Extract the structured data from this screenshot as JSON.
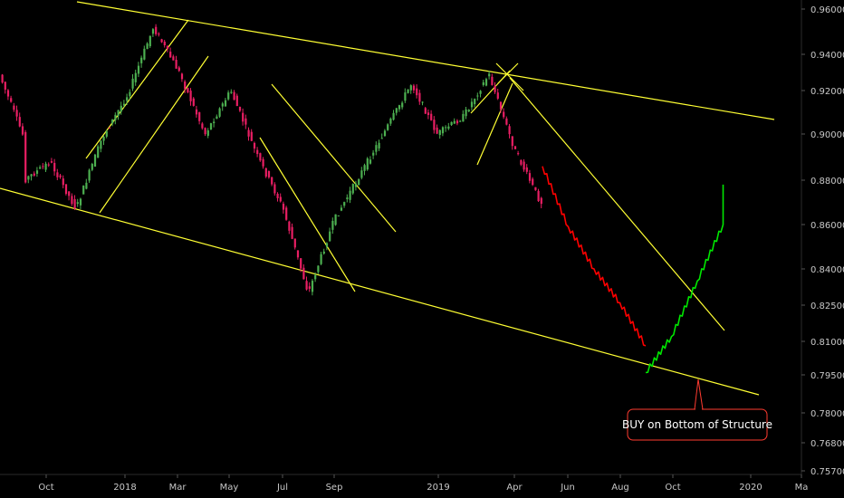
{
  "chart_data": {
    "type": "candlestick",
    "title": "",
    "xlabel": "",
    "ylabel": "",
    "x_tick_labels": [
      "Oct",
      "2018",
      "Mar",
      "May",
      "Jul",
      "Sep",
      "2019",
      "Apr",
      "Jun",
      "Aug",
      "Oct",
      "2020",
      "Ma"
    ],
    "y_tick_labels": [
      "0.96000",
      "0.94000",
      "0.92000",
      "0.90000",
      "0.88000",
      "0.86000",
      "0.84000",
      "0.82500",
      "0.81000",
      "0.79500",
      "0.78000",
      "0.76800",
      "0.75700"
    ],
    "grid": false,
    "colors": {
      "background": "#000000",
      "up": "#4caf50",
      "down": "#e91e63",
      "projection_down": "#ff0000",
      "projection_up": "#00e600",
      "trendline": "#ffff33",
      "callout_border": "#ff3b30",
      "axis_text": "#c8c8c8"
    },
    "series": [
      {
        "values": [
          {
            "x": "Sep 2017",
            "y": 0.93
          },
          {
            "x": "Oct 2017",
            "y": 0.898
          },
          {
            "x": "Oct 2017",
            "y": 0.88
          },
          {
            "x": "Nov 2017",
            "y": 0.888
          },
          {
            "x": "Dec 2017",
            "y": 0.867
          },
          {
            "x": "Jan 2018",
            "y": 0.898
          },
          {
            "x": "Feb 2018",
            "y": 0.918
          },
          {
            "x": "Mar 2018",
            "y": 0.952
          },
          {
            "x": "Apr 2018",
            "y": 0.93
          },
          {
            "x": "May 2018",
            "y": 0.9
          },
          {
            "x": "Jun 2018",
            "y": 0.92
          },
          {
            "x": "Jul 2018",
            "y": 0.891
          },
          {
            "x": "Aug 2018",
            "y": 0.868
          },
          {
            "x": "Sep 2018",
            "y": 0.83
          },
          {
            "x": "Oct 2018",
            "y": 0.862
          },
          {
            "x": "Dec 2018",
            "y": 0.902
          },
          {
            "x": "Jan 2019",
            "y": 0.924
          },
          {
            "x": "Feb 2019",
            "y": 0.9
          },
          {
            "x": "Mar 2019",
            "y": 0.908
          },
          {
            "x": "Apr 2019",
            "y": 0.929
          },
          {
            "x": "May 2019",
            "y": 0.893
          },
          {
            "x": "Jun 2019",
            "y": 0.87
          }
        ]
      },
      {
        "values": [
          {
            "x": "Jun 2019",
            "y": 0.886
          },
          {
            "x": "Jul 2019",
            "y": 0.859
          },
          {
            "x": "Aug 2019",
            "y": 0.84
          },
          {
            "x": "Sep 2019",
            "y": 0.826
          },
          {
            "x": "Oct 2019",
            "y": 0.808
          }
        ]
      },
      {
        "values": [
          {
            "x": "Oct 2019",
            "y": 0.796
          },
          {
            "x": "Nov 2019",
            "y": 0.812
          },
          {
            "x": "Dec 2019",
            "y": 0.835
          },
          {
            "x": "Jan 2020",
            "y": 0.86
          },
          {
            "x": "Jan 2020",
            "y": 0.878
          }
        ]
      }
    ],
    "annotations": [
      {
        "text": "BUY on Bottom of Structure",
        "x": "Nov 2019",
        "y": 0.794
      }
    ]
  }
}
